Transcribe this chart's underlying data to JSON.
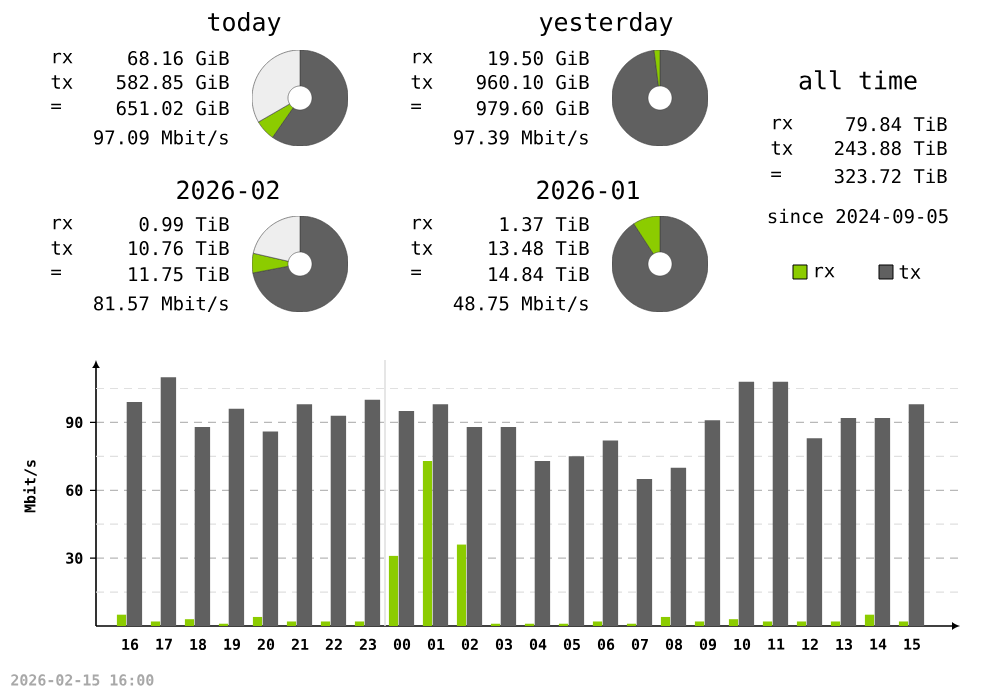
{
  "chart_data": [
    {
      "type": "donut",
      "title": "today",
      "categories": [
        null,
        null,
        null
      ],
      "values": [
        59.69,
        6.98,
        33.33
      ],
      "colors": [
        "#606060",
        "#8ccc00",
        "#eeeeee"
      ],
      "annotations": [
        "rx",
        "68.16 GiB",
        "tx",
        "582.85 GiB",
        "=",
        "651.02 GiB",
        "97.09 Mbit/s"
      ]
    },
    {
      "type": "donut",
      "title": "yesterday",
      "categories": [
        null,
        null
      ],
      "values": [
        98.01,
        1.99
      ],
      "colors": [
        "#606060",
        "#8ccc00"
      ],
      "annotations": [
        "rx",
        "19.50 GiB",
        "tx",
        "960.10 GiB",
        "=",
        "979.60 GiB",
        "97.39 Mbit/s"
      ]
    },
    {
      "type": "other",
      "title": "all time",
      "annotations": [
        "rx",
        "79.84 TiB",
        "tx",
        "243.88 TiB",
        "=",
        "323.72 TiB",
        "since 2024-09-05"
      ]
    },
    {
      "type": "donut",
      "title": "2026-02",
      "categories": [
        null,
        null,
        null
      ],
      "values": [
        72.0,
        6.6,
        21.4
      ],
      "colors": [
        "#606060",
        "#8ccc00",
        "#eeeeee"
      ],
      "annotations": [
        "rx",
        "0.99 TiB",
        "tx",
        "10.76 TiB",
        "=",
        "11.75 TiB",
        "81.57 Mbit/s"
      ]
    },
    {
      "type": "donut",
      "title": "2026-01",
      "categories": [
        null,
        null
      ],
      "values": [
        90.8,
        9.2
      ],
      "colors": [
        "#606060",
        "#8ccc00"
      ],
      "annotations": [
        "rx",
        "1.37 TiB",
        "tx",
        "13.48 TiB",
        "=",
        "14.84 TiB",
        "48.75 Mbit/s"
      ]
    },
    {
      "type": "bar",
      "ylabel": "Mbit/s",
      "categories": [
        "16",
        "17",
        "18",
        "19",
        "20",
        "21",
        "22",
        "23",
        "00",
        "01",
        "02",
        "03",
        "04",
        "05",
        "06",
        "07",
        "08",
        "09",
        "10",
        "11",
        "12",
        "13",
        "14",
        "15"
      ],
      "series": [
        {
          "name": "rx",
          "color": "#8ccc00",
          "values": [
            5,
            2,
            3,
            1,
            4,
            2,
            2,
            2,
            31,
            73,
            36,
            1,
            1,
            1,
            2,
            1,
            4,
            2,
            3,
            2,
            2,
            2,
            5,
            2
          ]
        },
        {
          "name": "tx",
          "color": "#606060",
          "values": [
            99,
            110,
            88,
            96,
            86,
            98,
            93,
            100,
            95,
            98,
            88,
            88,
            73,
            75,
            82,
            65,
            70,
            91,
            108,
            108,
            83,
            92,
            92,
            98
          ]
        }
      ],
      "ylim": [
        0,
        117.6
      ],
      "yticks": [
        {
          "value": 15,
          "label": null
        },
        30,
        {
          "value": 45,
          "label": null
        },
        60,
        {
          "value": 75,
          "label": null
        },
        90,
        {
          "value": 105,
          "label": null
        }
      ],
      "grid": "y",
      "legend": "top right",
      "ref_lines": [
        {
          "axis": "x",
          "value": "00",
          "color": "#e0e0e0"
        }
      ],
      "annotations": [
        "2026-02-15 16:00"
      ]
    }
  ]
}
